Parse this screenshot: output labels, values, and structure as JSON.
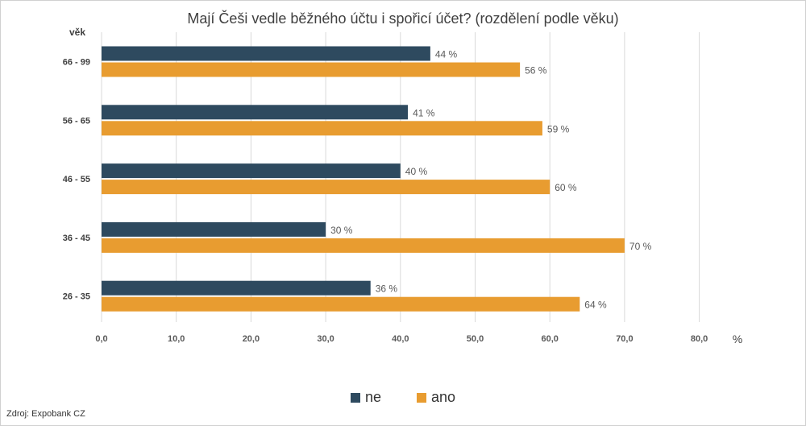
{
  "chart_data": {
    "type": "bar",
    "orientation": "horizontal",
    "title": "Mají Češi vedle běžného účtu i spořicí účet? (rozdělení podle věku)",
    "ylabel": "věk",
    "xlabel_unit": "%",
    "categories": [
      "66 - 99",
      "56 - 65",
      "46 - 55",
      "36 - 45",
      "26 - 35"
    ],
    "series": [
      {
        "name": "ne",
        "color": "#2e4a5f",
        "values": [
          44,
          41,
          40,
          30,
          36
        ],
        "labels": [
          "44 %",
          "41 %",
          "40 %",
          "30 %",
          "36 %"
        ]
      },
      {
        "name": "ano",
        "color": "#e89c30",
        "values": [
          56,
          59,
          60,
          70,
          64
        ],
        "labels": [
          "56 %",
          "59 %",
          "60 %",
          "70 %",
          "64 %"
        ]
      }
    ],
    "xlim": [
      0,
      80
    ],
    "xticks": [
      "0,0",
      "10,0",
      "20,0",
      "30,0",
      "40,0",
      "50,0",
      "60,0",
      "70,0",
      "80,0"
    ],
    "grid": true,
    "legend_position": "bottom"
  },
  "source": "Zdroj: Expobank CZ"
}
